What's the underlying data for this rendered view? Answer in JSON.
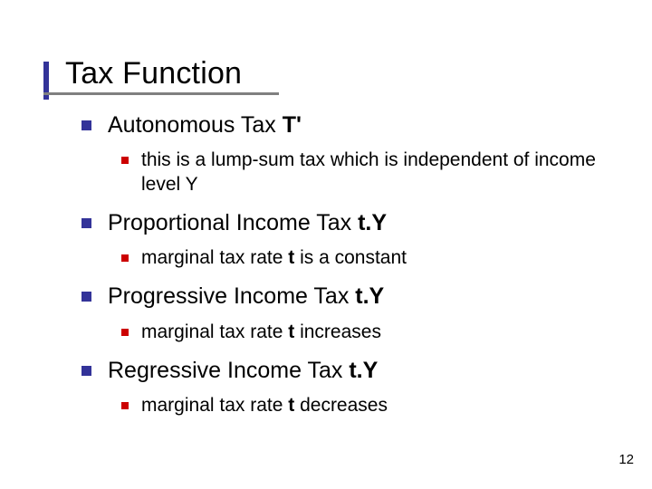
{
  "colors": {
    "bullet_l1": "#333399",
    "bullet_l2": "#cc0000",
    "title_bar": "#333399",
    "underline": "#808080",
    "text": "#000000",
    "background": "#ffffff"
  },
  "typography": {
    "title_fontsize": 34,
    "l1_fontsize": 25,
    "l2_fontsize": 21,
    "font_family": "Verdana"
  },
  "title": "Tax Function",
  "page_number": "12",
  "items": [
    {
      "pre": "Autonomous Tax ",
      "bold": "T'",
      "post": "",
      "sub": [
        {
          "pre": "this is a lump-sum tax which is independent of income level Y",
          "bold": "",
          "post": ""
        }
      ]
    },
    {
      "pre": "Proportional Income Tax ",
      "bold": "t.Y",
      "post": "",
      "sub": [
        {
          "pre": "marginal tax rate ",
          "bold": "t",
          "post": " is a constant"
        }
      ]
    },
    {
      "pre": "Progressive Income Tax ",
      "bold": "t.Y",
      "post": "",
      "sub": [
        {
          "pre": "marginal tax rate ",
          "bold": "t",
          "post": " increases"
        }
      ]
    },
    {
      "pre": "Regressive Income Tax ",
      "bold": "t.Y",
      "post": "",
      "sub": [
        {
          "pre": "marginal tax rate ",
          "bold": "t",
          "post": " decreases"
        }
      ]
    }
  ]
}
